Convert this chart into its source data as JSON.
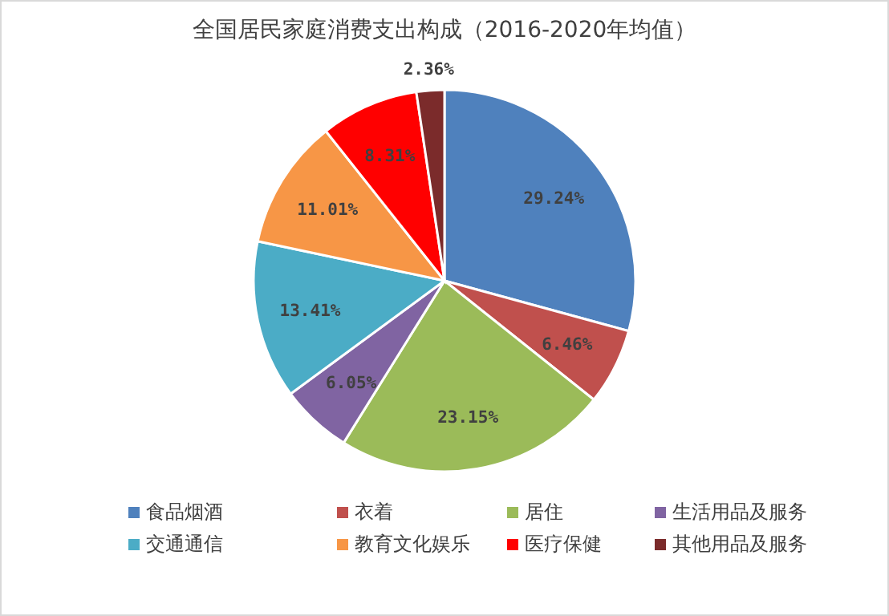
{
  "chart_data": {
    "type": "pie",
    "title": "全国居民家庭消费支出构成（2016-2020年均值）",
    "categories": [
      "食品烟酒",
      "衣着",
      "居住",
      "生活用品及服务",
      "交通通信",
      "教育文化娱乐",
      "医疗保健",
      "其他用品及服务"
    ],
    "values": [
      29.24,
      6.46,
      23.15,
      6.05,
      13.41,
      11.01,
      8.31,
      2.36
    ],
    "colors": [
      "#4f81bd",
      "#c0504d",
      "#9bbb59",
      "#8064a2",
      "#4bacc6",
      "#f79646",
      "#ff0000",
      "#7b2b2b"
    ],
    "value_labels": [
      "29.24%",
      "6.46%",
      "23.15%",
      "6.05%",
      "13.41%",
      "11.01%",
      "8.31%",
      "2.36%"
    ],
    "legend": "bottom"
  }
}
